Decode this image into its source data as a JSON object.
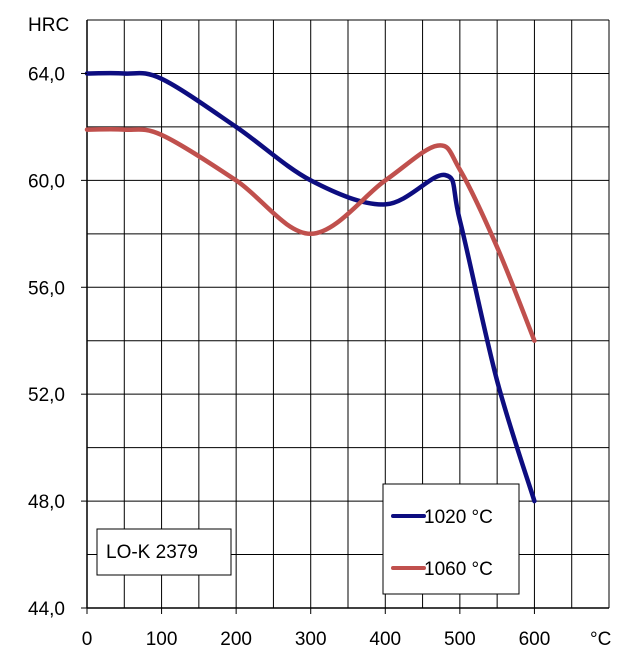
{
  "chart_data": {
    "type": "line",
    "ylabel": "HRC",
    "xlabel": "°C",
    "x_ticks": [
      "0",
      "100",
      "200",
      "300",
      "400",
      "500",
      "600"
    ],
    "y_ticks": [
      "64,0",
      "60,0",
      "56,0",
      "52,0",
      "48,0",
      "44,0"
    ],
    "xlim": [
      0,
      700
    ],
    "ylim": [
      44,
      66
    ],
    "grid": true,
    "legend_placement": "bottom-right",
    "annotation": "LO-K 2379",
    "series": [
      {
        "name": "1020 °C",
        "color": "#0d0d80",
        "x": [
          0,
          50,
          100,
          200,
          300,
          400,
          480,
          500,
          550,
          600
        ],
        "y": [
          64,
          64,
          63.8,
          62,
          60,
          59.1,
          60.2,
          58.5,
          52.5,
          48
        ]
      },
      {
        "name": "1060 °C",
        "color": "#c0504d",
        "x": [
          0,
          50,
          100,
          200,
          300,
          400,
          470,
          500,
          550,
          600
        ],
        "y": [
          61.9,
          61.9,
          61.7,
          60,
          58,
          60,
          61.3,
          60.4,
          57.5,
          54
        ]
      }
    ]
  }
}
